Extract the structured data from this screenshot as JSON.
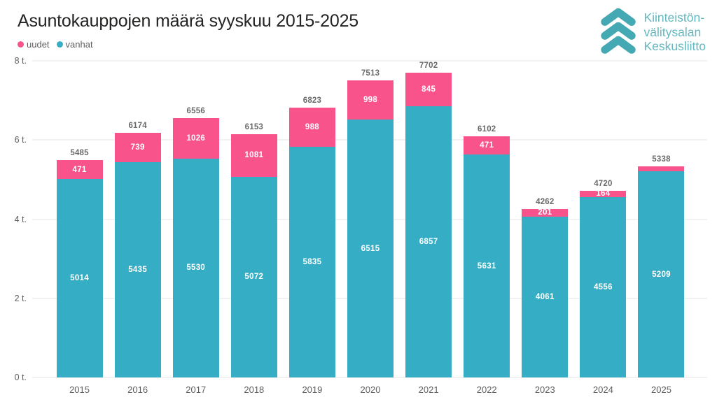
{
  "header": {
    "title": "Asuntokauppojen määrä syyskuu 2015-2025"
  },
  "legend": {
    "items": [
      {
        "label": "uudet",
        "color": "#F8538A"
      },
      {
        "label": "vanhat",
        "color": "#35AEC5"
      }
    ]
  },
  "logo": {
    "lines": [
      "Kiinteistön-",
      "välitysalan",
      "Keskusliitto"
    ],
    "chevron_color": "#44A9B2",
    "text_color": "#64B7BE"
  },
  "chart_data": {
    "type": "bar",
    "stacked": true,
    "title": "Asuntokauppojen määrä syyskuu 2015-2025",
    "categories": [
      "2015",
      "2016",
      "2017",
      "2018",
      "2019",
      "2020",
      "2021",
      "2022",
      "2023",
      "2024",
      "2025"
    ],
    "series": [
      {
        "name": "uudet",
        "color": "#F8538A",
        "values": [
          471,
          739,
          1026,
          1081,
          988,
          998,
          845,
          471,
          201,
          164,
          129
        ],
        "labels": [
          "471",
          "739",
          "1026",
          "1081",
          "988",
          "998",
          "845",
          "471",
          "201",
          "164",
          ""
        ]
      },
      {
        "name": "vanhat",
        "color": "#35AEC5",
        "values": [
          5014,
          5435,
          5530,
          5072,
          5835,
          6515,
          6857,
          5631,
          4061,
          4556,
          5209
        ],
        "labels": [
          "5014",
          "5435",
          "5530",
          "5072",
          "5835",
          "6515",
          "6857",
          "5631",
          "4061",
          "4556",
          "5209"
        ]
      }
    ],
    "totals": [
      5485,
      6174,
      6556,
      6153,
      6823,
      7513,
      7702,
      6102,
      4262,
      4720,
      5338
    ],
    "ylim": [
      0,
      8000
    ],
    "yticks": [
      {
        "value": 0,
        "label": "0 t."
      },
      {
        "value": 2000,
        "label": "2 t."
      },
      {
        "value": 4000,
        "label": "4 t."
      },
      {
        "value": 6000,
        "label": "6 t."
      },
      {
        "value": 8000,
        "label": "8 t."
      }
    ],
    "grid": true,
    "legend_position": "top-left",
    "xlabel": "",
    "ylabel": ""
  }
}
